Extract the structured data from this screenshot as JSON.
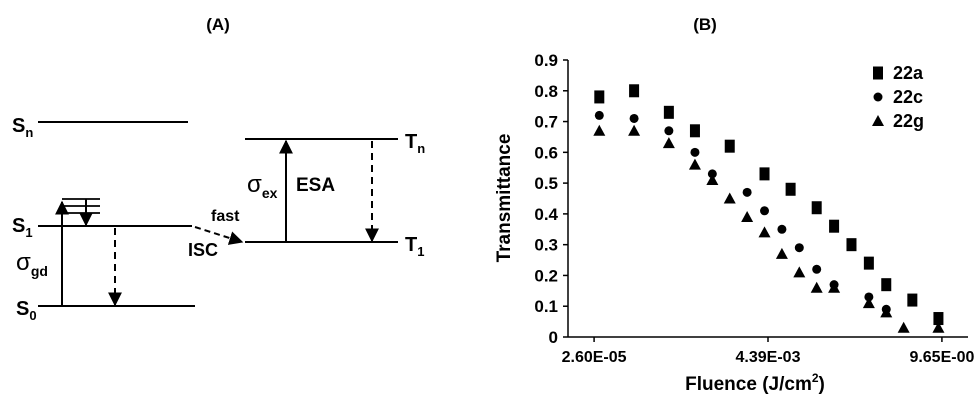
{
  "panel_a": {
    "label": "(A)",
    "levels": {
      "sn": "S",
      "sn_sub": "n",
      "s1": "S",
      "s1_sub": "1",
      "s0": "S",
      "s0_sub": "0",
      "tn": "T",
      "tn_sub": "n",
      "t1": "T",
      "t1_sub": "1"
    },
    "sigma_gd": "σ",
    "sigma_gd_sub": "gd",
    "sigma_ex": "σ",
    "sigma_ex_sub": "ex",
    "esa": "ESA",
    "fast": "fast",
    "isc": "ISC"
  },
  "panel_b": {
    "label": "(B)"
  },
  "chart_data": {
    "type": "scatter",
    "ylabel": "Transmittance",
    "xlabel_main": "Fluence (J/cm",
    "xlabel_sup": "2",
    "xlabel_end": ")",
    "x_ticks": [
      "2.60E-05",
      "4.39E-03",
      "9.65E-00"
    ],
    "x_tick_positions": [
      0,
      10,
      20
    ],
    "xlim": [
      -1.5,
      21.5
    ],
    "y_ticks": [
      "0",
      "0.1",
      "0.2",
      "0.3",
      "0.4",
      "0.5",
      "0.6",
      "0.7",
      "0.8",
      "0.9"
    ],
    "ylim": [
      0,
      0.9
    ],
    "legend_position": "top-right",
    "series": [
      {
        "name": "22a",
        "marker": "square",
        "points": [
          [
            0.3,
            0.78
          ],
          [
            2.3,
            0.8
          ],
          [
            4.3,
            0.73
          ],
          [
            5.8,
            0.67
          ],
          [
            7.8,
            0.62
          ],
          [
            9.8,
            0.53
          ],
          [
            11.3,
            0.48
          ],
          [
            12.8,
            0.42
          ],
          [
            13.8,
            0.36
          ],
          [
            14.8,
            0.3
          ],
          [
            15.8,
            0.24
          ],
          [
            16.8,
            0.17
          ],
          [
            18.3,
            0.12
          ],
          [
            19.8,
            0.06
          ]
        ]
      },
      {
        "name": "22c",
        "marker": "circle",
        "points": [
          [
            0.3,
            0.72
          ],
          [
            2.3,
            0.71
          ],
          [
            4.3,
            0.67
          ],
          [
            5.8,
            0.6
          ],
          [
            6.8,
            0.53
          ],
          [
            8.8,
            0.47
          ],
          [
            9.8,
            0.41
          ],
          [
            10.8,
            0.35
          ],
          [
            11.8,
            0.29
          ],
          [
            12.8,
            0.22
          ],
          [
            13.8,
            0.17
          ],
          [
            15.8,
            0.13
          ],
          [
            16.8,
            0.09
          ]
        ]
      },
      {
        "name": "22g",
        "marker": "triangle",
        "points": [
          [
            0.3,
            0.67
          ],
          [
            2.3,
            0.67
          ],
          [
            4.3,
            0.63
          ],
          [
            5.8,
            0.56
          ],
          [
            6.8,
            0.51
          ],
          [
            7.8,
            0.45
          ],
          [
            8.8,
            0.39
          ],
          [
            9.8,
            0.34
          ],
          [
            10.8,
            0.27
          ],
          [
            11.8,
            0.21
          ],
          [
            12.8,
            0.16
          ],
          [
            13.8,
            0.16
          ],
          [
            15.8,
            0.11
          ],
          [
            16.8,
            0.08
          ],
          [
            17.8,
            0.03
          ],
          [
            19.8,
            0.03
          ]
        ]
      }
    ]
  }
}
